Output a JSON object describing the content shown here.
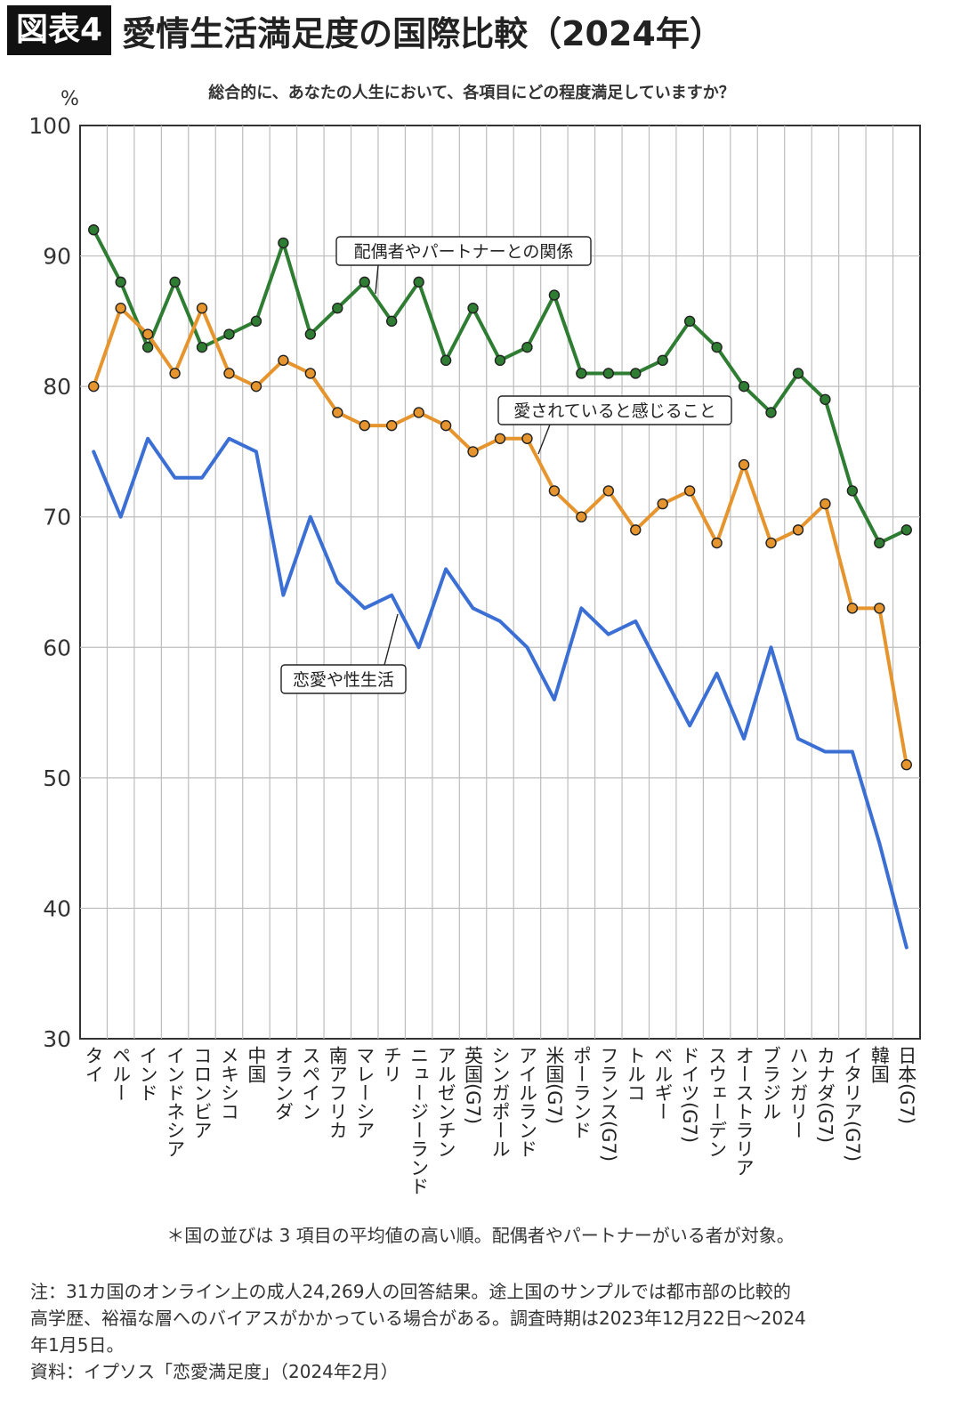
{
  "header": {
    "badge": "図表4",
    "title": "愛情生活満足度の国際比較（2024年）"
  },
  "chart_data": {
    "type": "line",
    "question": "総合的に、あなたの人生において、各項目にどの程度満足していますか？",
    "y_unit": "%",
    "ylim": [
      30,
      100
    ],
    "yticks": [
      30,
      40,
      50,
      60,
      70,
      80,
      90,
      100
    ],
    "grid": true,
    "categories": [
      "タイ",
      "ペルー",
      "インド",
      "インドネシア",
      "コロンビア",
      "メキシコ",
      "中国",
      "オランダ",
      "スペイン",
      "南アフリカ",
      "マレーシア",
      "チリ",
      "ニュージーランド",
      "アルゼンチン",
      "英国(G7)",
      "シンガポール",
      "アイルランド",
      "米国(G7)",
      "ポーランド",
      "フランス(G7)",
      "トルコ",
      "ベルギー",
      "ドイツ(G7)",
      "スウェーデン",
      "オーストラリア",
      "ブラジル",
      "ハンガリー",
      "カナダ(G7)",
      "イタリア(G7)",
      "韓国",
      "日本(G7)"
    ],
    "series": [
      {
        "name": "配偶者やパートナーとの関係",
        "color": "#2e7d32",
        "values": [
          92,
          88,
          83,
          88,
          83,
          84,
          85,
          91,
          84,
          86,
          88,
          85,
          88,
          82,
          86,
          82,
          83,
          87,
          81,
          81,
          81,
          82,
          85,
          83,
          80,
          78,
          81,
          79,
          72,
          68,
          69
        ]
      },
      {
        "name": "愛されていると感じること",
        "color": "#e6952e",
        "values": [
          80,
          86,
          84,
          81,
          86,
          81,
          80,
          82,
          81,
          78,
          77,
          77,
          78,
          77,
          75,
          76,
          76,
          72,
          70,
          72,
          69,
          71,
          72,
          68,
          74,
          68,
          69,
          71,
          63,
          63,
          51
        ]
      },
      {
        "name": "恋愛や性生活",
        "color": "#3b6fd4",
        "values": [
          75,
          70,
          76,
          73,
          73,
          76,
          75,
          64,
          70,
          65,
          63,
          64,
          60,
          66,
          63,
          62,
          60,
          56,
          63,
          61,
          62,
          58,
          54,
          58,
          53,
          60,
          53,
          52,
          52,
          45,
          37
        ]
      }
    ]
  },
  "footnote": "＊国の並びは 3 項目の平均値の高い順。配偶者やパートナーがいる者が対象。",
  "notes": [
    "注：31カ国のオンライン上の成人24,269人の回答結果。途上国のサンプルでは都市部の比較的",
    "高学歴、裕福な層へのバイアスがかかっている場合がある。調査時期は2023年12月22日～2024",
    "年1月5日。",
    "資料：イプソス「恋愛満足度」（2024年2月）"
  ]
}
